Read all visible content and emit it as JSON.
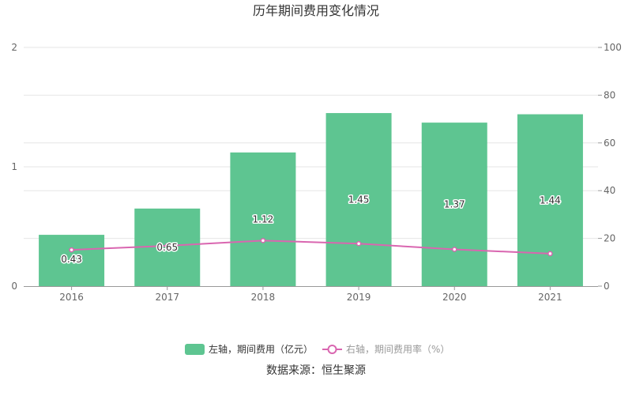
{
  "title": "历年期间费用变化情况",
  "source": "数据来源：恒生聚源",
  "colors": {
    "bar": "#5ec591",
    "line": "#d966b0",
    "grid": "#e6e6e6",
    "axis": "#999999",
    "legend_text_active": "#333333",
    "legend_text_inactive": "#999999"
  },
  "legend": [
    {
      "label": "左轴，期间费用（亿元）",
      "icon": "rect"
    },
    {
      "label": "右轴，期间费用率（%）",
      "icon": "line-circle"
    }
  ],
  "chart_data": {
    "type": "bar",
    "categories": [
      "2016",
      "2017",
      "2018",
      "2019",
      "2020",
      "2021"
    ],
    "series": [
      {
        "name": "左轴，期间费用（亿元）",
        "type": "bar",
        "axis": "left",
        "values": [
          0.43,
          0.65,
          1.12,
          1.45,
          1.37,
          1.44
        ],
        "labels": [
          "0.43",
          "0.65",
          "1.12",
          "1.45",
          "1.37",
          "1.44"
        ]
      },
      {
        "name": "右轴，期间费用率（%）",
        "type": "line",
        "axis": "right",
        "values": [
          15.2,
          16.9,
          19.1,
          17.8,
          15.4,
          13.6
        ]
      }
    ],
    "y_left": {
      "ylim": [
        0,
        2
      ],
      "ticks": [
        "0",
        "1",
        "2"
      ]
    },
    "y_right": {
      "ylim": [
        0,
        100
      ],
      "ticks": [
        "0",
        "20",
        "40",
        "60",
        "80",
        "100"
      ]
    },
    "grid": true,
    "legend_position": "bottom"
  }
}
